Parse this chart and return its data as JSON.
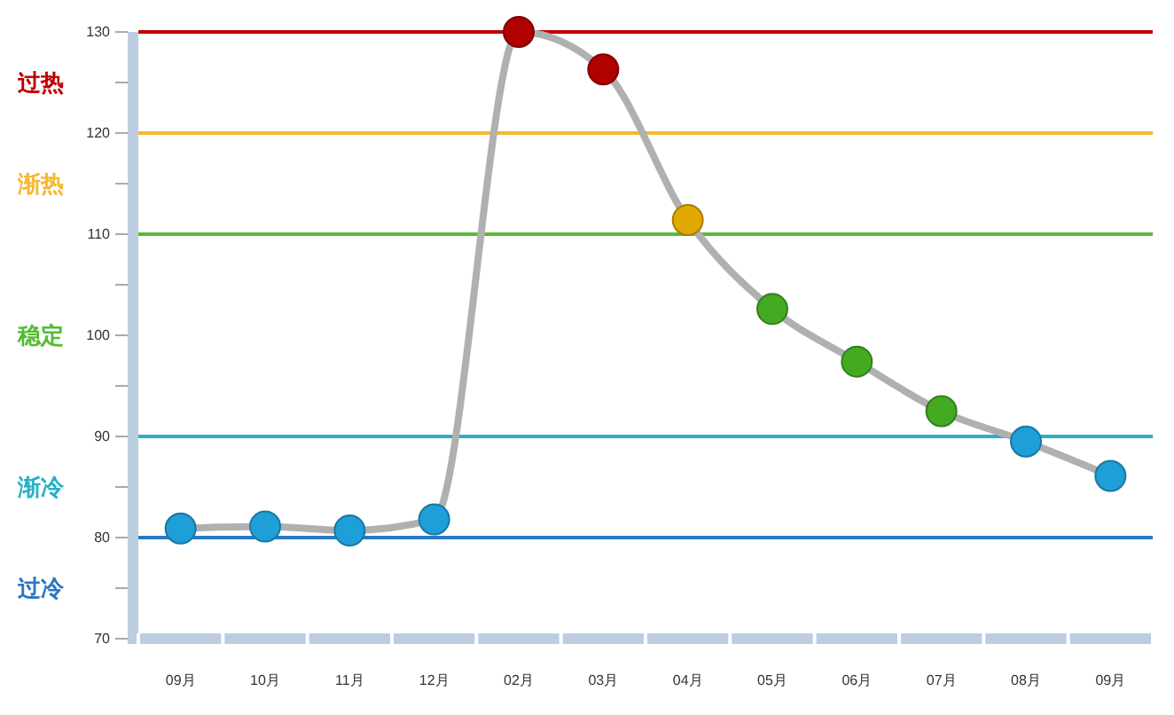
{
  "chart_data": {
    "type": "line",
    "categories": [
      "09月",
      "10月",
      "11月",
      "12月",
      "02月",
      "03月",
      "04月",
      "05月",
      "06月",
      "07月",
      "08月",
      "09月"
    ],
    "series": [
      {
        "color": "#b0b0b0",
        "values": [
          80.9,
          81.1,
          80.7,
          81.8,
          130,
          126.3,
          111.4,
          102.6,
          97.4,
          92.5,
          89.5,
          86.1
        ],
        "colors": [
          "#1e9fd8",
          "#1e9fd8",
          "#1e9fd8",
          "#1e9fd8",
          "#b00000",
          "#b00000",
          "#e0a800",
          "#44aa22",
          "#44aa22",
          "#44aa22",
          "#1e9fd8",
          "#1e9fd8"
        ]
      }
    ],
    "ylim": [
      70,
      130
    ],
    "yticks": [
      70,
      {
        "value": 75,
        "label": null
      },
      80,
      {
        "value": 85,
        "label": null
      },
      90,
      {
        "value": 95,
        "label": null
      },
      100,
      {
        "value": 105,
        "label": null
      },
      110,
      {
        "value": 115,
        "label": null
      },
      120,
      {
        "value": 125,
        "label": null
      },
      130
    ],
    "marker": "circle",
    "grid": false,
    "ref_lines": [
      {
        "axis": "y",
        "value": 130,
        "label": "过热",
        "color": "#c00000"
      },
      {
        "axis": "y",
        "value": 120,
        "label": "渐热",
        "color": "#f5b830"
      },
      {
        "axis": "y",
        "value": 110,
        "label": "稳定",
        "color": "#55bb33"
      },
      {
        "axis": "y",
        "value": 90,
        "label": "渐冷",
        "color": "#29b0c8"
      },
      {
        "axis": "y",
        "value": 80,
        "label": "过冷",
        "color": "#2a78c0"
      }
    ]
  }
}
